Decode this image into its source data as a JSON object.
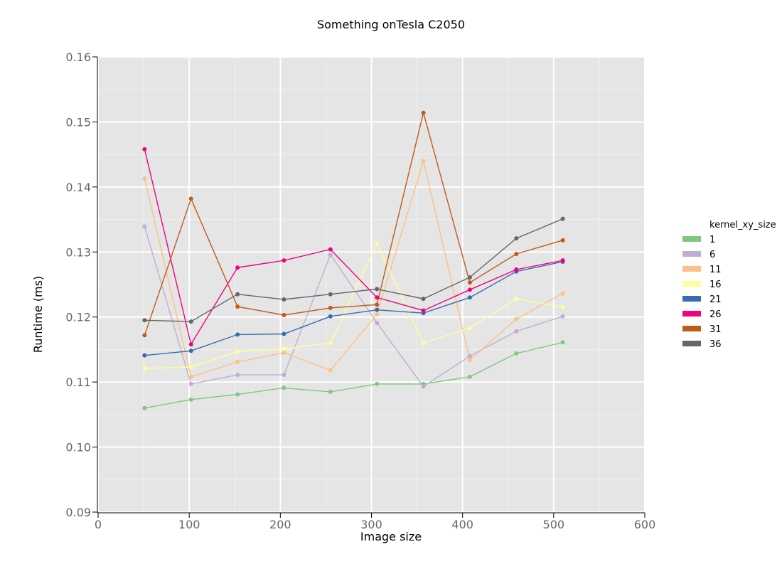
{
  "chart_data": {
    "type": "line",
    "title": "Something onTesla C2050",
    "xlabel": "Image size",
    "ylabel": "Runtime (ms)",
    "xlim": [
      0,
      600
    ],
    "ylim": [
      0.09,
      0.16
    ],
    "xticks": [
      0,
      100,
      200,
      300,
      400,
      500,
      600
    ],
    "yticks": [
      0.09,
      0.1,
      0.11,
      0.12,
      0.13,
      0.14,
      0.15,
      0.16
    ],
    "ytick_labels": [
      "0.09",
      "0.10",
      "0.11",
      "0.12",
      "0.13",
      "0.14",
      "0.15",
      "0.16"
    ],
    "grid": true,
    "legend_title": "kernel_xy_size",
    "legend_position": "right",
    "x": [
      51,
      102,
      153,
      204,
      255,
      306,
      357,
      408,
      459,
      510
    ],
    "series": [
      {
        "name": "1",
        "color": "#7fc97f",
        "values": [
          0.106,
          0.1073,
          0.1081,
          0.1091,
          0.1085,
          0.1097,
          0.1097,
          0.1108,
          0.1144,
          0.1161
        ]
      },
      {
        "name": "6",
        "color": "#beaed4",
        "values": [
          0.1339,
          0.1097,
          0.1111,
          0.1111,
          0.1296,
          0.1191,
          0.1093,
          0.114,
          0.1178,
          0.1201
        ]
      },
      {
        "name": "11",
        "color": "#fdc086",
        "values": [
          0.1413,
          0.1108,
          0.1131,
          0.1145,
          0.1118,
          0.1204,
          0.144,
          0.1134,
          0.1197,
          0.1236
        ]
      },
      {
        "name": "16",
        "color": "#ffff99",
        "values": [
          0.1121,
          0.1123,
          0.1147,
          0.1151,
          0.116,
          0.1313,
          0.116,
          0.1183,
          0.1228,
          0.1215
        ]
      },
      {
        "name": "21",
        "color": "#386cb0",
        "values": [
          0.1141,
          0.1148,
          0.1173,
          0.1174,
          0.1201,
          0.1211,
          0.1206,
          0.123,
          0.127,
          0.1285
        ]
      },
      {
        "name": "26",
        "color": "#f0027f",
        "values": [
          0.1458,
          0.1158,
          0.1276,
          0.1287,
          0.1304,
          0.123,
          0.121,
          0.1242,
          0.1273,
          0.1287
        ]
      },
      {
        "name": "31",
        "color": "#bf5b17",
        "values": [
          0.1172,
          0.1382,
          0.1216,
          0.1203,
          0.1214,
          0.1219,
          0.1514,
          0.1253,
          0.1297,
          0.1318
        ]
      },
      {
        "name": "36",
        "color": "#666666",
        "values": [
          0.1195,
          0.1193,
          0.1235,
          0.1227,
          0.1235,
          0.1243,
          0.1228,
          0.1261,
          0.1321,
          0.1351
        ]
      }
    ]
  }
}
